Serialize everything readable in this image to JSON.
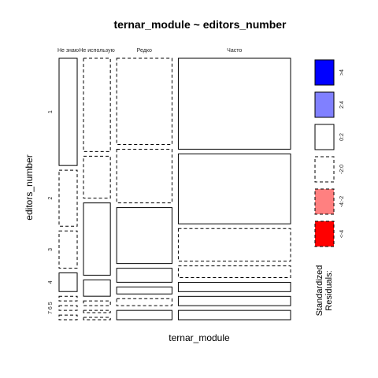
{
  "chart_data": {
    "type": "mosaic",
    "title": "ternar_module ~ editors_number",
    "xlabel": "ternar_module",
    "ylabel": "editors_number",
    "columns": [
      "Не знаю",
      "Не использую",
      "Редко",
      "Часто"
    ],
    "column_shares": [
      0.09,
      0.13,
      0.26,
      0.52
    ],
    "rows": [
      "1",
      "2",
      "3",
      "4",
      "5",
      "6",
      "7"
    ],
    "row_tick_labels": [
      "1",
      "2",
      "3",
      "4",
      "7 6 5"
    ],
    "cells": [
      [
        0.46,
        0.24,
        0.16,
        0.08,
        0.02,
        0.02,
        0.02
      ],
      [
        0.4,
        0.18,
        0.31,
        0.07,
        0.02,
        0.01,
        0.01
      ],
      [
        0.37,
        0.23,
        0.24,
        0.06,
        0.03,
        0.03,
        0.04
      ],
      [
        0.39,
        0.3,
        0.14,
        0.05,
        0.04,
        0.04,
        0.04
      ]
    ],
    "residual_class": [
      [
        "0:2",
        "-2:0",
        "-2:0",
        "0:2",
        "-2:0",
        "-2:0",
        "-2:0"
      ],
      [
        "-2:0",
        "-2:0",
        "0:2",
        "0:2",
        "-2:0",
        "-2:0",
        "-2:0"
      ],
      [
        "-2:0",
        "-2:0",
        "0:2",
        "0:2",
        "0:2",
        "-2:0",
        "0:2"
      ],
      [
        "0:2",
        "0:2",
        "-2:0",
        "-2:0",
        "0:2",
        "0:2",
        "0:2"
      ]
    ],
    "legend": {
      "title_line1": "Standardized",
      "title_line2": "Residuals:",
      "entries": [
        {
          "label": ">4",
          "fill": "#0000ff",
          "dashed": false
        },
        {
          "label": "2:4",
          "fill": "#8080ff",
          "dashed": false
        },
        {
          "label": "0:2",
          "fill": "#ffffff",
          "dashed": false
        },
        {
          "label": "-2:0",
          "fill": "#ffffff",
          "dashed": true
        },
        {
          "label": "-4:-2",
          "fill": "#ff8080",
          "dashed": true
        },
        {
          "label": "<-4",
          "fill": "#ff0000",
          "dashed": true
        }
      ]
    }
  }
}
